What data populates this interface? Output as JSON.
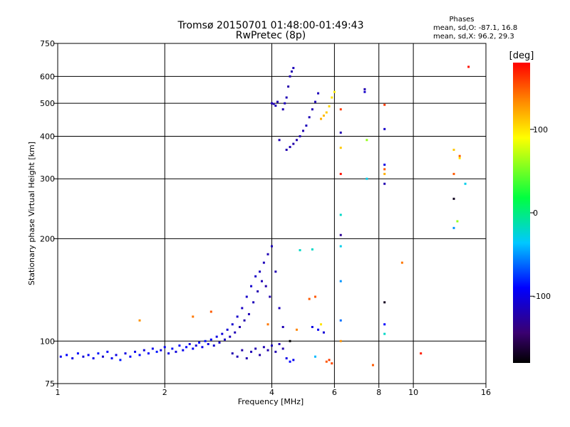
{
  "chart_data": {
    "type": "scatter",
    "title": "Tromsø 20150701 01:48:00-01:49:43",
    "subtitle": "RwPretec (8p)",
    "xlabel": "Frequency [MHz]",
    "ylabel": "Stationary phase Virtual Height [km]",
    "x_scale": "log",
    "y_scale": "log",
    "xlim": [
      1,
      16
    ],
    "ylim": [
      75,
      750
    ],
    "x_ticks": [
      {
        "value": 1,
        "label": "1"
      },
      {
        "value": 2,
        "label": "2"
      },
      {
        "value": 4,
        "label": "4"
      },
      {
        "value": 6,
        "label": "6"
      },
      {
        "value": 8,
        "label": "8"
      },
      {
        "value": 10,
        "label": "10"
      },
      {
        "value": 16,
        "label": "16"
      }
    ],
    "y_ticks": [
      {
        "value": 75,
        "label": "75"
      },
      {
        "value": 100,
        "label": "100"
      },
      {
        "value": 200,
        "label": "200"
      },
      {
        "value": 300,
        "label": "300"
      },
      {
        "value": 400,
        "label": "400"
      },
      {
        "value": 500,
        "label": "500"
      },
      {
        "value": 600,
        "label": "600"
      },
      {
        "value": 750,
        "label": "750"
      }
    ],
    "x_gridlines": [
      2,
      4,
      6,
      8,
      10
    ],
    "y_gridlines": [
      100,
      200,
      300,
      400,
      500,
      600
    ],
    "phases": {
      "heading": "Phases",
      "line_o": "mean, sd,O: -87.1, 16.8",
      "line_x": "mean, sd,X:  96.2, 29.3"
    },
    "colorbar": {
      "label": "[deg]",
      "range": [
        -180,
        180
      ],
      "ticks": [
        {
          "value": 100,
          "label": "100"
        },
        {
          "value": 0,
          "label": "0"
        },
        {
          "value": -100,
          "label": "-100"
        }
      ]
    },
    "series": [
      {
        "points": [
          [
            1.02,
            90,
            -95
          ],
          [
            1.06,
            91,
            -90
          ],
          [
            1.1,
            89,
            -100
          ],
          [
            1.14,
            92,
            -88
          ],
          [
            1.18,
            90,
            -105
          ],
          [
            1.22,
            91,
            -92
          ],
          [
            1.26,
            89,
            -98
          ],
          [
            1.3,
            92,
            -85
          ],
          [
            1.34,
            90,
            -110
          ],
          [
            1.38,
            93,
            -90
          ],
          [
            1.42,
            89,
            -95
          ],
          [
            1.46,
            91,
            -100
          ],
          [
            1.5,
            88,
            -85
          ],
          [
            1.55,
            92,
            -102
          ],
          [
            1.6,
            90,
            -92
          ],
          [
            1.65,
            93,
            -97
          ],
          [
            1.7,
            91,
            -88
          ],
          [
            1.75,
            94,
            -104
          ],
          [
            1.8,
            92,
            -90
          ],
          [
            1.85,
            95,
            -96
          ],
          [
            1.9,
            93,
            -85
          ],
          [
            1.95,
            94,
            -101
          ],
          [
            2.0,
            96,
            -93
          ],
          [
            2.05,
            92,
            -99
          ],
          [
            2.1,
            95,
            -87
          ],
          [
            2.15,
            93,
            -103
          ],
          [
            2.2,
            97,
            -91
          ],
          [
            2.25,
            94,
            -96
          ],
          [
            2.3,
            96,
            -89
          ],
          [
            2.35,
            98,
            -100
          ],
          [
            2.4,
            95,
            -92
          ],
          [
            2.45,
            97,
            -105
          ],
          [
            2.5,
            99,
            -90
          ],
          [
            2.55,
            96,
            -98
          ],
          [
            2.6,
            100,
            -86
          ],
          [
            2.65,
            98,
            -102
          ],
          [
            2.7,
            101,
            -94
          ],
          [
            2.75,
            97,
            -108
          ],
          [
            2.8,
            103,
            -100
          ],
          [
            2.85,
            99,
            -110
          ],
          [
            2.9,
            105,
            -104
          ],
          [
            2.95,
            101,
            -112
          ],
          [
            3.0,
            108,
            -106
          ],
          [
            3.05,
            103,
            -115
          ],
          [
            3.1,
            112,
            -108
          ],
          [
            3.15,
            106,
            -118
          ],
          [
            3.2,
            118,
            -110
          ],
          [
            3.25,
            110,
            -120
          ],
          [
            3.3,
            125,
            -112
          ],
          [
            3.35,
            115,
            -122
          ],
          [
            3.4,
            135,
            -110
          ],
          [
            3.45,
            120,
            -118
          ],
          [
            3.5,
            145,
            -108
          ],
          [
            3.55,
            130,
            -116
          ],
          [
            3.6,
            155,
            -112
          ],
          [
            3.65,
            140,
            -120
          ],
          [
            3.7,
            160,
            -114
          ],
          [
            3.75,
            150,
            -118
          ],
          [
            3.8,
            170,
            -116
          ],
          [
            3.85,
            145,
            -122
          ],
          [
            3.9,
            180,
            -118
          ],
          [
            3.95,
            135,
            -120
          ],
          [
            4.0,
            190,
            -116
          ],
          [
            4.1,
            160,
            -120
          ],
          [
            4.2,
            125,
            -115
          ],
          [
            4.3,
            110,
            -118
          ],
          [
            3.1,
            92,
            -120
          ],
          [
            3.2,
            90,
            -118
          ],
          [
            3.3,
            94,
            -122
          ],
          [
            3.4,
            89,
            -120
          ],
          [
            3.5,
            93,
            -118
          ],
          [
            3.6,
            95,
            -120
          ],
          [
            3.7,
            91,
            -122
          ],
          [
            3.8,
            96,
            -118
          ],
          [
            3.9,
            94,
            -120
          ],
          [
            4.0,
            97,
            -116
          ],
          [
            4.1,
            93,
            -120
          ],
          [
            4.2,
            98,
            -118
          ],
          [
            4.3,
            95,
            -122
          ],
          [
            4.4,
            89,
            -100
          ],
          [
            4.5,
            87,
            -90
          ],
          [
            4.6,
            88,
            -95
          ],
          [
            4.0,
            500,
            -118
          ],
          [
            4.05,
            498,
            -122
          ],
          [
            4.1,
            492,
            -116
          ],
          [
            4.15,
            505,
            -120
          ],
          [
            4.2,
            390,
            -118
          ],
          [
            4.3,
            480,
            -120
          ],
          [
            4.35,
            500,
            -116
          ],
          [
            4.4,
            520,
            -118
          ],
          [
            4.45,
            560,
            -122
          ],
          [
            4.5,
            600,
            -118
          ],
          [
            4.55,
            620,
            -120
          ],
          [
            4.6,
            635,
            -116
          ],
          [
            4.4,
            365,
            -120
          ],
          [
            4.5,
            372,
            -118
          ],
          [
            4.6,
            380,
            -122
          ],
          [
            4.7,
            390,
            -120
          ],
          [
            4.8,
            400,
            -118
          ],
          [
            4.9,
            415,
            -120
          ],
          [
            5.0,
            430,
            -116
          ],
          [
            5.1,
            455,
            -118
          ],
          [
            5.2,
            480,
            -120
          ],
          [
            5.3,
            505,
            -118
          ],
          [
            5.4,
            535,
            -116
          ],
          [
            5.5,
            450,
            120
          ],
          [
            5.6,
            460,
            115
          ],
          [
            5.7,
            470,
            110
          ],
          [
            5.8,
            490,
            105
          ],
          [
            5.9,
            520,
            100
          ],
          [
            6.0,
            540,
            95
          ],
          [
            5.2,
            110,
            -100
          ],
          [
            5.4,
            108,
            -95
          ],
          [
            5.6,
            106,
            -105
          ],
          [
            5.3,
            90,
            -40
          ],
          [
            5.5,
            112,
            100
          ],
          [
            6.25,
            480,
            160
          ],
          [
            6.25,
            410,
            -120
          ],
          [
            6.25,
            370,
            110
          ],
          [
            6.25,
            310,
            175
          ],
          [
            6.25,
            235,
            -20
          ],
          [
            6.25,
            205,
            -130
          ],
          [
            6.25,
            190,
            -30
          ],
          [
            6.25,
            150,
            -50
          ],
          [
            6.25,
            115,
            -60
          ],
          [
            6.25,
            100,
            130
          ],
          [
            5.8,
            88,
            160
          ],
          [
            5.9,
            86,
            155
          ],
          [
            5.7,
            87,
            150
          ],
          [
            7.3,
            550,
            -120
          ],
          [
            7.3,
            540,
            -110
          ],
          [
            7.4,
            390,
            60
          ],
          [
            7.4,
            300,
            -30
          ],
          [
            7.7,
            85,
            150
          ],
          [
            8.3,
            495,
            160
          ],
          [
            8.3,
            420,
            -110
          ],
          [
            8.3,
            330,
            -100
          ],
          [
            8.3,
            320,
            150
          ],
          [
            8.3,
            310,
            120
          ],
          [
            8.3,
            290,
            -120
          ],
          [
            8.3,
            130,
            -170
          ],
          [
            8.3,
            112,
            -90
          ],
          [
            8.3,
            105,
            -20
          ],
          [
            9.3,
            170,
            140
          ],
          [
            10.5,
            92,
            170
          ],
          [
            1.7,
            115,
            130
          ],
          [
            2.4,
            118,
            140
          ],
          [
            2.7,
            122,
            150
          ],
          [
            3.9,
            112,
            140
          ],
          [
            4.7,
            108,
            135
          ],
          [
            5.1,
            133,
            150
          ],
          [
            5.2,
            186,
            -20
          ],
          [
            5.3,
            135,
            150
          ],
          [
            4.5,
            100,
            -180
          ],
          [
            4.8,
            185,
            -20
          ],
          [
            13.0,
            365,
            110
          ],
          [
            13.5,
            350,
            150
          ],
          [
            13.5,
            345,
            100
          ],
          [
            13.0,
            310,
            150
          ],
          [
            14.0,
            290,
            -30
          ],
          [
            13.0,
            262,
            -170
          ],
          [
            13.3,
            225,
            60
          ],
          [
            13.0,
            215,
            -50
          ],
          [
            14.3,
            640,
            175
          ]
        ]
      }
    ]
  }
}
